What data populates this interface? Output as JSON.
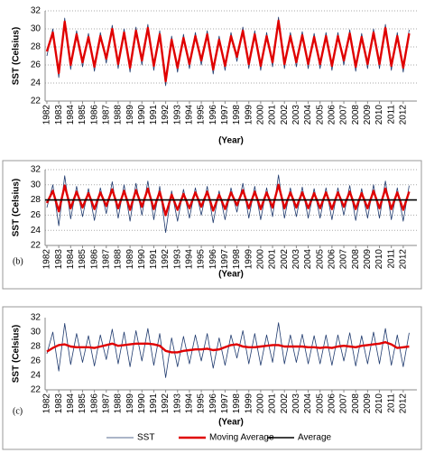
{
  "chart_data": [
    {
      "type": "line",
      "ylabel": "SST (Celsius)",
      "xlabel": "(Year)",
      "x": [
        1982,
        1982.5,
        1983,
        1983.5,
        1984,
        1984.5,
        1985,
        1985.5,
        1986,
        1986.5,
        1987,
        1987.5,
        1988,
        1988.5,
        1989,
        1989.5,
        1990,
        1990.5,
        1991,
        1991.5,
        1992,
        1992.5,
        1993,
        1993.5,
        1994,
        1994.5,
        1995,
        1995.5,
        1996,
        1996.5,
        1997,
        1997.5,
        1998,
        1998.5,
        1999,
        1999.5,
        2000,
        2000.5,
        2001,
        2001.5,
        2002,
        2002.5,
        2003,
        2003.5,
        2004,
        2004.5,
        2005,
        2005.5,
        2006,
        2006.5,
        2007,
        2007.5,
        2008,
        2008.5,
        2009,
        2009.5,
        2010,
        2010.5,
        2011,
        2011.5,
        2012,
        2012.5
      ],
      "xlim": [
        1981.85,
        2013.15
      ],
      "xticks": [
        1982,
        1983,
        1984,
        1985,
        1986,
        1987,
        1988,
        1989,
        1990,
        1991,
        1992,
        1993,
        1994,
        1995,
        1996,
        1997,
        1998,
        1999,
        2000,
        2001,
        2002,
        2003,
        2004,
        2005,
        2006,
        2007,
        2008,
        2009,
        2010,
        2011,
        2012
      ],
      "ylim": [
        22,
        32
      ],
      "yticks": [
        22,
        24,
        26,
        28,
        30,
        32
      ],
      "grid": true,
      "series": [
        {
          "name": "SST",
          "color": "#1f3a6e",
          "values": [
            27.0,
            30.0,
            24.6,
            31.2,
            25.5,
            29.8,
            25.8,
            29.5,
            25.3,
            29.6,
            26.2,
            30.4,
            25.6,
            30.0,
            25.2,
            30.2,
            26.0,
            30.5,
            25.4,
            29.8,
            23.7,
            29.2,
            25.2,
            29.4,
            25.6,
            29.6,
            26.0,
            29.8,
            25.0,
            29.2,
            25.4,
            29.6,
            26.4,
            30.2,
            25.6,
            29.8,
            25.4,
            29.6,
            25.8,
            31.3,
            25.6,
            29.6,
            25.8,
            29.7,
            25.6,
            29.5,
            25.6,
            29.6,
            25.4,
            29.6,
            26.0,
            29.9,
            25.3,
            29.5,
            25.6,
            30.0,
            25.6,
            30.5,
            25.4,
            29.6,
            25.2,
            29.9
          ]
        },
        {
          "name": "Moving Average",
          "color": "#e00000",
          "values": [
            27.5,
            29.6,
            25.1,
            30.8,
            26.0,
            29.4,
            26.3,
            29.1,
            25.8,
            29.2,
            26.7,
            30.0,
            26.1,
            29.6,
            25.7,
            29.8,
            26.5,
            30.1,
            25.9,
            29.4,
            24.2,
            28.8,
            25.7,
            29.0,
            26.1,
            29.2,
            26.5,
            29.4,
            25.5,
            28.8,
            25.9,
            29.2,
            26.9,
            29.8,
            26.1,
            29.4,
            25.9,
            29.2,
            26.3,
            30.9,
            26.1,
            29.2,
            26.3,
            29.3,
            26.1,
            29.1,
            26.1,
            29.2,
            25.9,
            29.2,
            26.5,
            29.5,
            25.8,
            29.1,
            26.1,
            29.6,
            26.1,
            30.1,
            25.9,
            29.2,
            25.7,
            29.5
          ]
        }
      ]
    },
    {
      "type": "line",
      "label": "(b)",
      "ylabel": "SST (Celsius)",
      "xlabel": "(Year)",
      "x": [
        1982,
        1982.5,
        1983,
        1983.5,
        1984,
        1984.5,
        1985,
        1985.5,
        1986,
        1986.5,
        1987,
        1987.5,
        1988,
        1988.5,
        1989,
        1989.5,
        1990,
        1990.5,
        1991,
        1991.5,
        1992,
        1992.5,
        1993,
        1993.5,
        1994,
        1994.5,
        1995,
        1995.5,
        1996,
        1996.5,
        1997,
        1997.5,
        1998,
        1998.5,
        1999,
        1999.5,
        2000,
        2000.5,
        2001,
        2001.5,
        2002,
        2002.5,
        2003,
        2003.5,
        2004,
        2004.5,
        2005,
        2005.5,
        2006,
        2006.5,
        2007,
        2007.5,
        2008,
        2008.5,
        2009,
        2009.5,
        2010,
        2010.5,
        2011,
        2011.5,
        2012,
        2012.5
      ],
      "xlim": [
        1981.85,
        2013.15
      ],
      "xticks": [
        1982,
        1983,
        1984,
        1985,
        1986,
        1987,
        1988,
        1989,
        1990,
        1991,
        1992,
        1993,
        1994,
        1995,
        1996,
        1997,
        1998,
        1999,
        2000,
        2001,
        2002,
        2003,
        2004,
        2005,
        2006,
        2007,
        2008,
        2009,
        2010,
        2011,
        2012
      ],
      "ylim": [
        22,
        32
      ],
      "yticks": [
        22,
        24,
        26,
        28,
        30,
        32
      ],
      "grid": true,
      "series": [
        {
          "name": "SST",
          "color": "#1f3a6e",
          "values": [
            27.0,
            30.0,
            24.6,
            31.2,
            25.5,
            29.8,
            25.8,
            29.5,
            25.3,
            29.6,
            26.2,
            30.4,
            25.6,
            30.0,
            25.2,
            30.2,
            26.0,
            30.5,
            25.4,
            29.8,
            23.7,
            29.2,
            25.2,
            29.4,
            25.6,
            29.6,
            26.0,
            29.8,
            25.0,
            29.2,
            25.4,
            29.6,
            26.4,
            30.2,
            25.6,
            29.8,
            25.4,
            29.6,
            25.8,
            31.3,
            25.6,
            29.6,
            25.8,
            29.7,
            25.6,
            29.5,
            25.6,
            29.6,
            25.4,
            29.6,
            26.0,
            29.9,
            25.3,
            29.5,
            25.6,
            30.0,
            25.6,
            30.5,
            25.4,
            29.6,
            25.2,
            29.9
          ]
        },
        {
          "name": "Moving Average",
          "color": "#e00000",
          "values": [
            27.6,
            29.2,
            26.5,
            29.9,
            26.9,
            29.1,
            27.0,
            28.9,
            26.8,
            29.0,
            27.2,
            29.4,
            26.9,
            29.2,
            26.7,
            29.3,
            27.1,
            29.5,
            26.8,
            29.1,
            26.0,
            28.7,
            26.7,
            28.8,
            26.9,
            29.0,
            27.1,
            29.1,
            26.6,
            28.7,
            26.8,
            29.0,
            27.3,
            29.3,
            26.9,
            29.1,
            26.8,
            29.0,
            27.0,
            30.0,
            26.9,
            29.0,
            27.0,
            29.0,
            26.9,
            28.9,
            26.9,
            29.0,
            26.8,
            29.0,
            27.1,
            29.1,
            26.8,
            28.9,
            26.9,
            29.2,
            26.9,
            29.5,
            26.8,
            29.0,
            26.7,
            29.1
          ]
        }
      ],
      "hlines": [
        {
          "name": "Average",
          "color": "#000000",
          "value": 28
        }
      ]
    },
    {
      "type": "line",
      "label": "(c)",
      "ylabel": "SST (Celsius)",
      "xlabel": "(Year)",
      "x": [
        1982,
        1982.5,
        1983,
        1983.5,
        1984,
        1984.5,
        1985,
        1985.5,
        1986,
        1986.5,
        1987,
        1987.5,
        1988,
        1988.5,
        1989,
        1989.5,
        1990,
        1990.5,
        1991,
        1991.5,
        1992,
        1992.5,
        1993,
        1993.5,
        1994,
        1994.5,
        1995,
        1995.5,
        1996,
        1996.5,
        1997,
        1997.5,
        1998,
        1998.5,
        1999,
        1999.5,
        2000,
        2000.5,
        2001,
        2001.5,
        2002,
        2002.5,
        2003,
        2003.5,
        2004,
        2004.5,
        2005,
        2005.5,
        2006,
        2006.5,
        2007,
        2007.5,
        2008,
        2008.5,
        2009,
        2009.5,
        2010,
        2010.5,
        2011,
        2011.5,
        2012,
        2012.5
      ],
      "xlim": [
        1981.85,
        2013.15
      ],
      "xticks": [
        1982,
        1983,
        1984,
        1985,
        1986,
        1987,
        1988,
        1989,
        1990,
        1991,
        1992,
        1993,
        1994,
        1995,
        1996,
        1997,
        1998,
        1999,
        2000,
        2001,
        2002,
        2003,
        2004,
        2005,
        2006,
        2007,
        2008,
        2009,
        2010,
        2011,
        2012
      ],
      "ylim": [
        22,
        32
      ],
      "yticks": [
        22,
        24,
        26,
        28,
        30,
        32
      ],
      "grid": false,
      "series": [
        {
          "name": "SST",
          "color": "#1f3a6e",
          "values": [
            27.0,
            30.0,
            24.6,
            31.2,
            25.5,
            29.8,
            25.8,
            29.5,
            25.3,
            29.6,
            26.2,
            30.4,
            25.6,
            30.0,
            25.2,
            30.2,
            26.0,
            30.5,
            25.4,
            29.8,
            23.7,
            29.2,
            25.2,
            29.4,
            25.6,
            29.6,
            26.0,
            29.8,
            25.0,
            29.2,
            25.4,
            29.6,
            26.4,
            30.2,
            25.6,
            29.8,
            25.4,
            29.6,
            25.8,
            31.3,
            25.6,
            29.6,
            25.8,
            29.7,
            25.6,
            29.5,
            25.6,
            29.6,
            25.4,
            29.6,
            26.0,
            29.9,
            25.3,
            29.5,
            25.6,
            30.0,
            25.6,
            30.5,
            25.4,
            29.6,
            25.2,
            29.9
          ]
        },
        {
          "name": "Moving Average",
          "color": "#e00000",
          "values": [
            27.3,
            27.8,
            28.2,
            28.3,
            28.0,
            27.9,
            27.9,
            27.9,
            27.8,
            28.0,
            28.2,
            28.4,
            28.1,
            28.2,
            28.3,
            28.4,
            28.4,
            28.4,
            28.3,
            28.1,
            27.4,
            27.2,
            27.2,
            27.4,
            27.5,
            27.6,
            27.6,
            27.7,
            27.5,
            27.6,
            27.9,
            28.2,
            28.3,
            28.0,
            27.9,
            27.9,
            28.0,
            28.1,
            28.2,
            28.2,
            28.0,
            28.0,
            28.0,
            28.0,
            27.9,
            27.9,
            27.8,
            27.9,
            27.8,
            28.0,
            28.1,
            28.0,
            27.9,
            28.1,
            28.2,
            28.3,
            28.4,
            28.6,
            28.3,
            27.8,
            27.9,
            28.0
          ]
        }
      ]
    }
  ]
}
